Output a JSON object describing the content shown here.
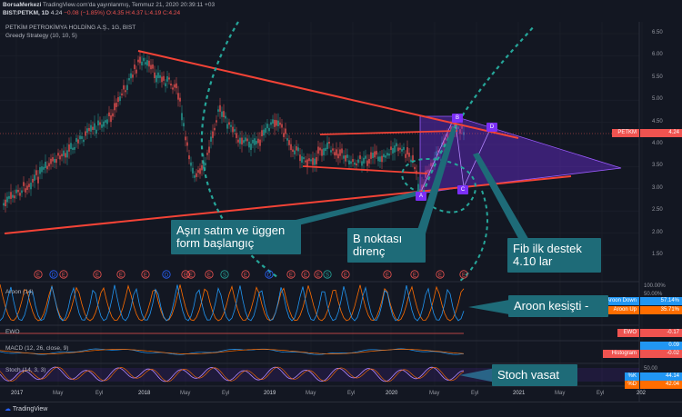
{
  "header": {
    "publisher": "BorsaMerkezi",
    "published_line": "TradingView.com'da yayınlanmış, Temmuz 21, 2020 20:39:11 +03",
    "symbol_line": "BIST:PETKM, 1D",
    "last": "4.24",
    "change": "−0.08 (−1.85%)",
    "o": "O:4.35",
    "h": "H:4.37",
    "l": "L:4.19",
    "c": "C:4.24"
  },
  "chart": {
    "instrument_title": "PETKİM PETROKİMYA HOLDİNG A.Ş., 1G, BIST",
    "strategy": "Greedy Strategy (10, 10, 5)",
    "price_ticks": [
      "6.50",
      "6.00",
      "5.50",
      "5.00",
      "4.50",
      "4.00",
      "3.50",
      "3.00",
      "2.50",
      "2.00",
      "1.50"
    ],
    "price_tag_label": "PETKM",
    "price_tag_value": "4.24",
    "pattern_points": [
      "A",
      "B",
      "C",
      "D"
    ],
    "event_markers": [
      "E",
      "D",
      "E",
      "E",
      "E",
      "E",
      "D",
      "E",
      "E",
      "E",
      "S",
      "E",
      "D",
      "E",
      "E",
      "E",
      "S",
      "E",
      "E",
      "E",
      "E",
      "E"
    ],
    "colors": {
      "trendline": "#f44336",
      "pattern_fill": "#7b2ff7",
      "dashed_green": "#26a69a",
      "callout": "#1e6b78",
      "up_candle": "#26a69a",
      "down_candle": "#ef5350"
    }
  },
  "callouts": {
    "oversold": "Aşırı satım ve üggen form başlangıç",
    "b_point": "B noktası direnç",
    "fib": "Fib ilk destek 4.10 lar",
    "aroon": "Aroon kesişti -",
    "stoch": "Stoch vasat"
  },
  "panels": {
    "aroon": {
      "title": "Aroon (14)",
      "ticks": [
        "100.00%",
        "50.00%"
      ],
      "down_label": "Aroon Down",
      "down_value": "57.14%",
      "up_label": "Aroon Up",
      "up_value": "35.71%"
    },
    "ewo": {
      "title": "EWO",
      "label": "EWO",
      "value": "-0.17"
    },
    "macd": {
      "title": "MACD (12, 26, close, 9)",
      "macd_value": "0.09",
      "hist_label": "Histogram",
      "hist_value": "-0.02"
    },
    "stoch": {
      "title": "Stoch (14, 3, 3)",
      "k_label": "%K",
      "k_value": "44.14",
      "d_label": "%D",
      "d_value": "42.04",
      "tick": "50.00"
    }
  },
  "time_axis": [
    "2017",
    "May",
    "Eyl",
    "2018",
    "May",
    "Eyl",
    "2019",
    "May",
    "Eyl",
    "2020",
    "May",
    "Eyl",
    "2021",
    "May",
    "Eyl",
    "202"
  ],
  "footer": {
    "brand": "TradingView"
  }
}
